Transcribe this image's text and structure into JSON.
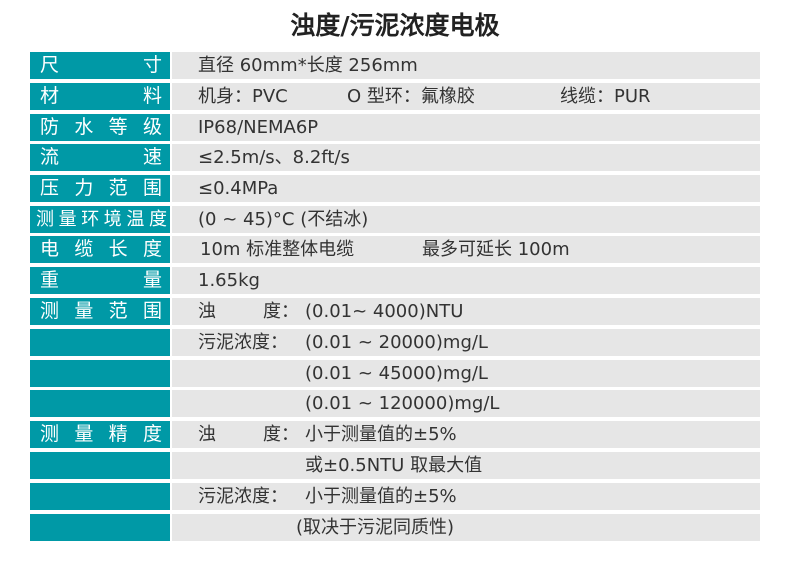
{
  "title": "浊度/污泥浓度电极",
  "rows": [
    {
      "label": "尺寸",
      "values": [
        "直径 60mm*长度 256mm"
      ]
    },
    {
      "label": "材料",
      "values": [
        "机身：PVC",
        "O 型环：氟橡胶",
        "线缆：PUR"
      ]
    },
    {
      "label": "防水等级",
      "values": [
        "IP68/NEMA6P"
      ]
    },
    {
      "label": "流速",
      "values": [
        "≤2.5m/s、8.2ft/s"
      ]
    },
    {
      "label": "压力范围",
      "values": [
        "≤0.4MPa"
      ]
    },
    {
      "label": "测量环境温度",
      "values": [
        "(0 ~ 45)°C (不结冰)"
      ]
    },
    {
      "label": "电缆长度",
      "values": [
        "10m 标准整体电缆",
        "最多可延长 100m"
      ]
    },
    {
      "label": "重量",
      "values": [
        "1.65kg"
      ]
    },
    {
      "label": "测量范围",
      "values": [
        "浊",
        "度：",
        "(0.01~ 4000)NTU"
      ]
    },
    {
      "label": "",
      "values": [
        "污泥浓度：",
        "(0.01 ~ 20000)mg/L"
      ]
    },
    {
      "label": "",
      "values": [
        "(0.01 ~ 45000)mg/L"
      ]
    },
    {
      "label": "",
      "values": [
        "(0.01 ~ 120000)mg/L"
      ]
    },
    {
      "label": "测量精度",
      "values": [
        "浊",
        "度：",
        "小于测量值的±5%"
      ]
    },
    {
      "label": "",
      "values": [
        "或±0.5NTU 取最大值"
      ]
    },
    {
      "label": "",
      "values": [
        "污泥浓度：",
        "小于测量值的±5%"
      ]
    },
    {
      "label": "",
      "values": [
        "(取决于污泥同质性)"
      ]
    }
  ]
}
